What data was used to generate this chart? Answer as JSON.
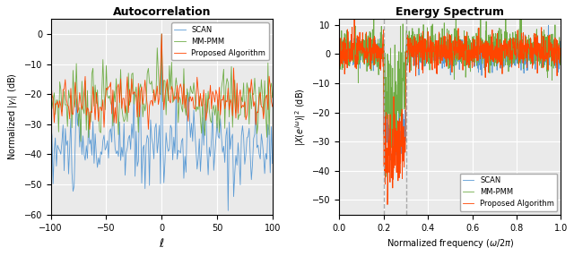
{
  "color_scan": "#5B9BD5",
  "color_mmpmm": "#70AD47",
  "color_prop": "#FF4500",
  "left_title": "Autocorrelation",
  "left_xlabel": "$\\ell$",
  "left_ylabel": "Normalized $|\\gamma_l|$ (dB)",
  "left_ylim": [
    -60,
    5
  ],
  "left_yticks": [
    0,
    -10,
    -20,
    -30,
    -40,
    -50,
    -60
  ],
  "left_xlim": [
    -100,
    100
  ],
  "left_xticks": [
    -100,
    -50,
    0,
    50,
    100
  ],
  "right_title": "Energy Spectrum",
  "right_xlabel": "Normalized frequency ($\\omega/2\\pi$)",
  "right_ylabel": "$|X(e^{j\\omega})|^2$ (dB)",
  "right_ylim": [
    -55,
    12
  ],
  "right_yticks": [
    10,
    0,
    -10,
    -20,
    -30,
    -40,
    -50
  ],
  "right_xlim": [
    0,
    1
  ],
  "right_xticks": [
    0,
    0.2,
    0.4,
    0.6,
    0.8,
    1.0
  ],
  "vline1": 0.2,
  "vline2": 0.3,
  "legend_labels": [
    "SCAN",
    "MM-PMM",
    "Proposed Algorithm"
  ],
  "ax_facecolor": "#EAEAEA",
  "fig_facecolor": "#FFFFFF",
  "grid_color": "#FFFFFF",
  "title_fontsize": 9,
  "label_fontsize": 7,
  "tick_fontsize": 7,
  "legend_fontsize": 6,
  "linewidth": 0.6
}
